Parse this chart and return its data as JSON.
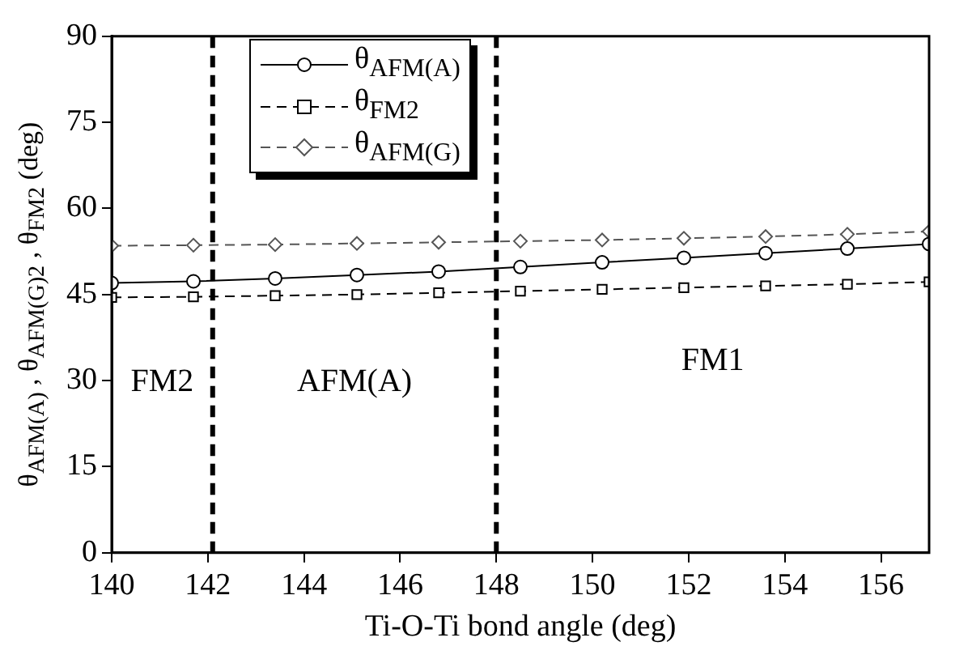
{
  "chart_data": {
    "type": "line",
    "xlabel": "Ti-O-Ti bond angle (deg)",
    "ylabel": "θ$_{AFM(A)}$ , θ$_{AFM(G)2}$ , θ$_{FM2}$  (deg)",
    "x": [
      140,
      141.7,
      143.4,
      145.1,
      146.8,
      148.5,
      150.2,
      151.9,
      153.6,
      155.3,
      157
    ],
    "series": [
      {
        "name": "θ$_{AFM(A)}$",
        "color": "#000000",
        "marker": "circle",
        "line_style": "solid",
        "values": [
          47.0,
          47.3,
          47.8,
          48.4,
          49.0,
          49.8,
          50.6,
          51.4,
          52.2,
          53.0,
          53.8
        ]
      },
      {
        "name": "θ$_{FM2}$",
        "color": "#000000",
        "marker": "square",
        "line_style": "dashed",
        "values": [
          44.5,
          44.6,
          44.8,
          45.0,
          45.3,
          45.6,
          45.9,
          46.2,
          46.5,
          46.8,
          47.2
        ]
      },
      {
        "name": "θ$_{AFM(G)}$",
        "color": "#555555",
        "marker": "diamond",
        "line_style": "dashed",
        "values": [
          53.5,
          53.6,
          53.7,
          53.9,
          54.1,
          54.3,
          54.5,
          54.8,
          55.1,
          55.5,
          56.0
        ]
      }
    ],
    "xlim": [
      140,
      157
    ],
    "xticks": [
      140,
      142,
      144,
      146,
      148,
      150,
      152,
      154,
      156
    ],
    "ylim": [
      0,
      90
    ],
    "yticks": [
      0,
      15,
      30,
      45,
      60,
      75,
      90
    ],
    "grid": false,
    "legend": "top left",
    "ref_lines": [
      {
        "axis": "x",
        "value": 142.1,
        "color": "#000000",
        "line_style": "dashed"
      },
      {
        "axis": "x",
        "value": 148,
        "color": "#000000",
        "line_style": "dashed"
      }
    ],
    "annotations": [
      "FM2",
      "AFM(A)",
      "FM1"
    ]
  }
}
